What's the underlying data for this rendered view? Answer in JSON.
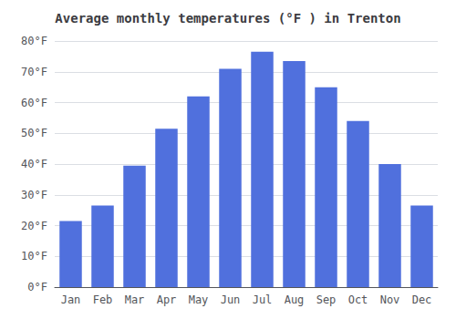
{
  "chart_data": {
    "type": "bar",
    "title": "Average monthly temperatures (°F ) in Trenton",
    "categories": [
      "Jan",
      "Feb",
      "Mar",
      "Apr",
      "May",
      "Jun",
      "Jul",
      "Aug",
      "Sep",
      "Oct",
      "Nov",
      "Dec"
    ],
    "values": [
      21.5,
      26.5,
      39.5,
      51.5,
      62,
      71,
      76.5,
      73.5,
      65,
      54,
      40,
      26.5
    ],
    "ylim": [
      0,
      80
    ],
    "yticks": [
      {
        "value": 0,
        "label": "0°F"
      },
      {
        "value": 10,
        "label": "10°F"
      },
      {
        "value": 20,
        "label": "20°F"
      },
      {
        "value": 30,
        "label": "30°F"
      },
      {
        "value": 40,
        "label": "40°F"
      },
      {
        "value": 50,
        "label": "50°F"
      },
      {
        "value": 60,
        "label": "60°F"
      },
      {
        "value": 70,
        "label": "70°F"
      },
      {
        "value": 80,
        "label": "80°F"
      }
    ],
    "grid": true
  }
}
